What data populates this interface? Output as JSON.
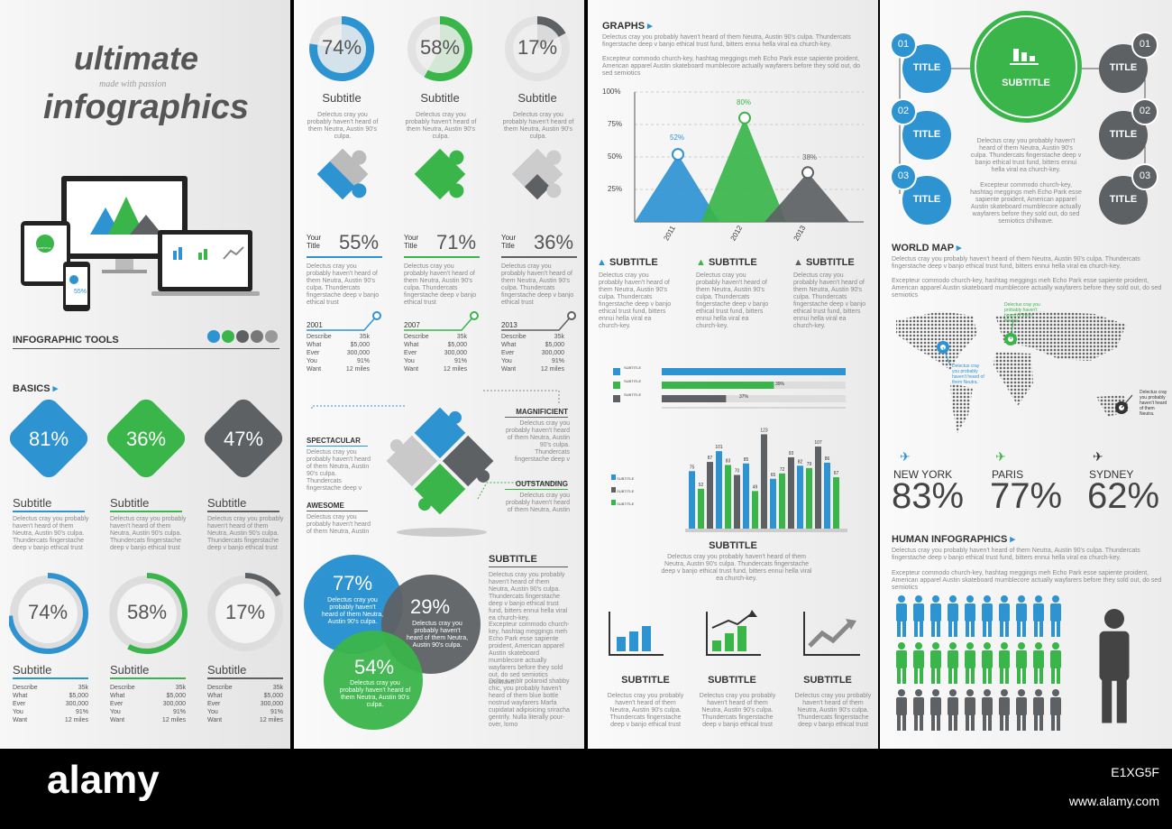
{
  "colors": {
    "blue": "#2e93d1",
    "green": "#3ab54a",
    "gray": "#5d6164"
  },
  "p1": {
    "title1": "ultimate",
    "tagline": "made with passion",
    "title2": "infographics",
    "tools": "INFOGRAPHIC TOOLS",
    "basics": "BASICS",
    "diamonds": [
      "81%",
      "36%",
      "47%"
    ],
    "subtitle": "Subtitle",
    "lorem": "Delectus cray you probably haven't heard of them Neutra, Austin 90's culpa. Thundercats fingerstache deep v banjo ethical trust",
    "rings": [
      "74%",
      "58%",
      "17%"
    ],
    "table": [
      [
        "Describe",
        "35k"
      ],
      [
        "What",
        "$5,000"
      ],
      [
        "Ever",
        "300,000"
      ],
      [
        "You",
        "91%"
      ],
      [
        "Want",
        "12 miles"
      ]
    ],
    "device": {
      "subtitle": "SUBTITLE",
      "pct": "55%"
    }
  },
  "p2": {
    "pies": [
      "74%",
      "58%",
      "17%"
    ],
    "subtitle": "Subtitle",
    "lorem": "Delectus cray you probably haven't heard of them Neutra, Austin 90's culpa.",
    "your_title": [
      "Your",
      "Title"
    ],
    "stats": [
      "55%",
      "71%",
      "36%"
    ],
    "lorem2": "Delectus cray you probably haven't heard of them Neutra, Austin 90's culpa. Thundercats fingerstache deep v banjo ethical trust",
    "years": [
      "2001",
      "2007",
      "2013"
    ],
    "table": [
      [
        "Describe",
        "35k"
      ],
      [
        "What",
        "$5,000"
      ],
      [
        "Ever",
        "300,000"
      ],
      [
        "You",
        "91%"
      ],
      [
        "Want",
        "12 miles"
      ]
    ],
    "puzzle_labels": [
      "SPECTACULAR",
      "AWESOME",
      "MAGNIFICIENT",
      "OUTSTANDING"
    ],
    "puzzle_lorem": "Delectus cray you probably haven't heard of them Neutra, Austin 90's culpa. Thundercats fingerstache deep v",
    "puzzle_lorem2": "Delectus cray you probably haven't heard of them Neutra, Austin",
    "venn": [
      "77%",
      "29%",
      "54%"
    ],
    "venn_lorem": "Delectus cray you probably haven't heard of them Neutra, Austin 90's culpa.",
    "venn_lorem2": "Delectus cray you probably haven't heard of them Neutra, Austin 90's culpa.",
    "subtitle_caps": "SUBTITLE",
    "side_text": [
      "Delectus cray you probably haven't heard of them Neutra, Austin 90's culpa. Thundercats fingerstache deep v banjo ethical trust fund, bitters ennui hella viral ea church-key.",
      "Excepteur commodo church-key, hashtag meggings meh Echo Park esse sapiente proident, American apparel Austin skateboard mumblecore actually wayfarers before they sold out, do sed semiotics chillwave.",
      "Dolor tumblr polaroid shabby chic, you probably haven't heard of them blue bottle nostrud wayfarers Marfa cupidatat adipisicing sriracha gentrify. Nulla literally pour-over, lomo"
    ]
  },
  "p3": {
    "graphs": "GRAPHS",
    "intro": [
      "Delectus cray you probably haven't heard of them Neutra, Austin 90's culpa. Thundercats fingerstache deep v banjo ethical trust fund, bitters ennui hella viral ea church-key.",
      "Excepteur commodo church-key, hashtag meggings meh Echo Park esse sapiente proident, American apparel Austin skateboard mumblecore actually wayfarers before they sold out, do sed semiotics"
    ],
    "yticks": [
      "100%",
      "75%",
      "50%",
      "25%"
    ],
    "peak_labels": [
      "52%",
      "80%",
      "38%"
    ],
    "years": [
      "2011",
      "2012",
      "2013"
    ],
    "subtitle_caps": "SUBTITLE",
    "col_lorem": "Delectus cray you probably haven't heard of them Neutra, Austin 90's culpa. Thundercats fingerstache deep v banjo ethical trust fund, bitters ennui hella viral ea church-key.",
    "hbar_label": "SUBTITLE",
    "hbar_values": [
      "39%",
      "37%"
    ],
    "bar_values": [
      "75",
      "52",
      "87",
      "101",
      "83",
      "70",
      "85",
      "49",
      "123",
      "65",
      "72",
      "93",
      "82",
      "79",
      "107",
      "86",
      "67"
    ],
    "sub_lorem": "Delectus cray you probably haven't heard of them Neutra, Austin 90's culpa. Thundercats fingerstache deep v banjo ethical trust fund, bitters ennui hella viral ea church-key.",
    "icon_lorem": "Delectus cray you probably haven't heard of them Neutra, Austin 90's culpa. Thundercats fingerstache deep v banjo ethical trust"
  },
  "p4": {
    "nums": [
      "01",
      "02",
      "03"
    ],
    "title": "TITLE",
    "subtitle": "SUBTITLE",
    "center_text": [
      "Delectus cray you probably haven't heard of them Neutra, Austin 90's culpa. Thundercats fingerstache deep v banjo ethical trust fund, bitters ennui hella viral ea church-key.",
      "Excepteur commodo church-key, hashtag meggings meh Echo Park esse sapiente proident, American apparel Austin skateboard mumblecore actually wayfarers before they sold out, do sed semiotics chillwave."
    ],
    "worldmap": "WORLD MAP",
    "map_text": [
      "Delectus cray you probably haven't heard of them Neutra, Austin 90's culpa. Thundercats fingerstache deep v banjo ethical trust fund, bitters ennui hella viral ea church-key.",
      "Excepteur commodo church-key, hashtag meggings meh Echo Park esse sapiente proident, American apparel Austin skateboard mumblecore actually wayfarers before they sold out, do sed semiotics"
    ],
    "map_note": "Delectus cray you probably haven't heard of them Neutra.",
    "cities": [
      {
        "name": "NEW YORK",
        "pct": "83%"
      },
      {
        "name": "PARIS",
        "pct": "77%"
      },
      {
        "name": "SYDNEY",
        "pct": "62%"
      }
    ],
    "human": "HUMAN INFOGRAPHICS",
    "human_text": [
      "Delectus cray you probably haven't heard of them Neutra, Austin 90's culpa. Thundercats fingerstache deep v banjo ethical trust fund, bitters ennui hella viral ea church-key.",
      "Excepteur commodo church-key, hashtag meggings meh Echo Park esse sapiente proident, American apparel Austin skateboard mumblecore actually wayfarers before they sold out, do sed semiotics"
    ]
  },
  "footer": {
    "logo": "alamy",
    "url": "www.alamy.com",
    "code": "E1XG5F"
  }
}
